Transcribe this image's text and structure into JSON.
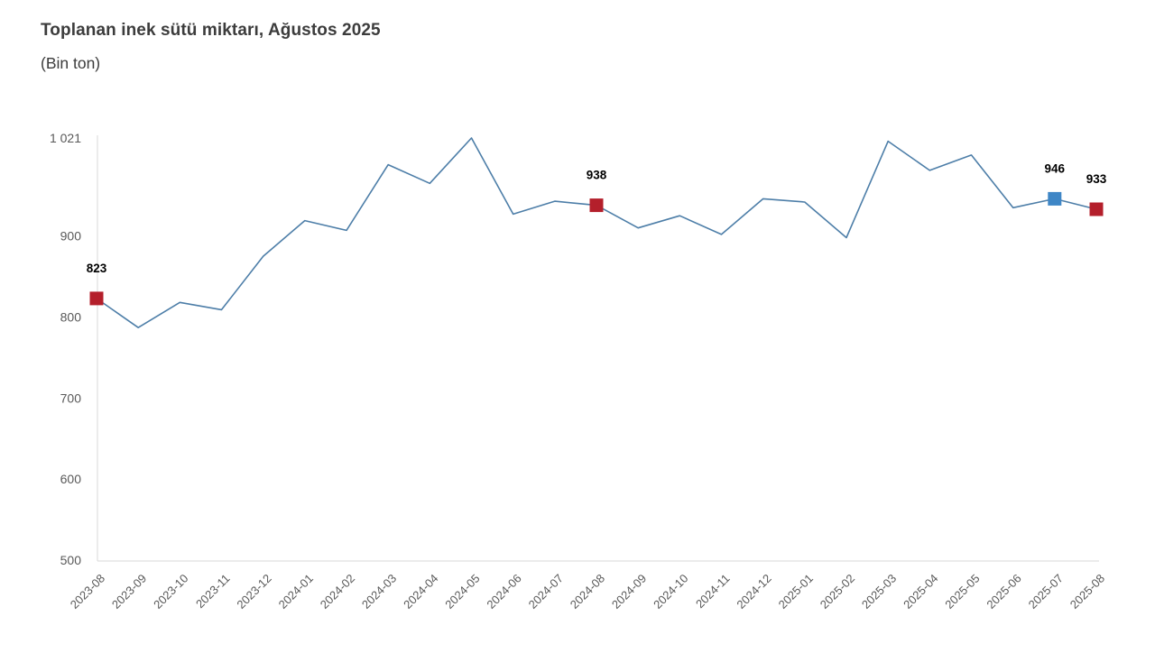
{
  "header": {
    "title": "Toplanan inek sütü miktarı, Ağustos 2025",
    "subtitle": "(Bin ton)"
  },
  "chart_data": {
    "type": "line",
    "title": "Toplanan inek sütü miktarı, Ağustos 2025",
    "subtitle": "(Bin ton)",
    "xlabel": "",
    "ylabel": "",
    "legend_position": "none",
    "grid": false,
    "ylim": [
      500,
      1021
    ],
    "y_ticks": [
      500,
      600,
      700,
      800,
      900,
      1021
    ],
    "categories": [
      "2023-08",
      "2023-09",
      "2023-10",
      "2023-11",
      "2023-12",
      "2024-01",
      "2024-02",
      "2024-03",
      "2024-04",
      "2024-05",
      "2024-06",
      "2024-07",
      "2024-08",
      "2024-09",
      "2024-10",
      "2024-11",
      "2024-12",
      "2025-01",
      "2025-02",
      "2025-03",
      "2025-04",
      "2025-05",
      "2025-06",
      "2025-07",
      "2025-08"
    ],
    "values": [
      823,
      787,
      818,
      809,
      875,
      919,
      907,
      988,
      965,
      1021,
      927,
      943,
      938,
      910,
      925,
      902,
      946,
      942,
      898,
      1017,
      981,
      1000,
      935,
      946,
      933
    ],
    "highlights": [
      {
        "category": "2023-08",
        "index": 0,
        "value": 823,
        "label": "823",
        "color_key": "highlight_red"
      },
      {
        "category": "2024-08",
        "index": 12,
        "value": 938,
        "label": "938",
        "color_key": "highlight_red"
      },
      {
        "category": "2025-07",
        "index": 23,
        "value": 946,
        "label": "946",
        "color_key": "highlight_blue"
      },
      {
        "category": "2025-08",
        "index": 24,
        "value": 933,
        "label": "933",
        "color_key": "highlight_red"
      }
    ],
    "colors": {
      "line": "#4d7ea8",
      "highlight_red": "#b41f2b",
      "highlight_blue": "#3e86c6",
      "axis_text": "#595959",
      "axis_line": "#d9d9d9",
      "data_label": "#000000",
      "title_text": "#3c3c3c",
      "background": "#ffffff"
    }
  }
}
